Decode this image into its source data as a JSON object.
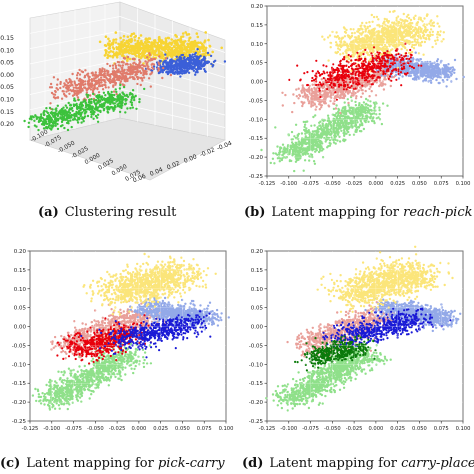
{
  "captions": {
    "a": {
      "tag": "(a)",
      "text": "Clustering result",
      "italic": ""
    },
    "b": {
      "tag": "(b)",
      "text": "Latent mapping for ",
      "italic": "reach-pick"
    },
    "c": {
      "tag": "(c)",
      "text": "Latent mapping for ",
      "italic": "pick-carry"
    },
    "d": {
      "tag": "(d)",
      "text": "Latent mapping for ",
      "italic": "carry-place"
    }
  },
  "colors": {
    "yellow": "#f7d433",
    "red_cluster": "#e07b6b",
    "blue_cluster": "#3b5fd8",
    "green_cluster": "#3cc23c",
    "light_yellow": "#fbe57a",
    "light_red": "#e9a09a",
    "light_blue": "#93a9e8",
    "light_green": "#8fe08a",
    "mapping_red": "#e8000b",
    "mapping_blue": "#1a1ad6",
    "mapping_green": "#0b7a0b"
  },
  "chart_data": [
    {
      "type": "scatter",
      "subtype": "3d",
      "title": "",
      "z_ticks": [
        "0.15",
        "0.10",
        "0.05",
        "0.00",
        "-0.05",
        "-0.10",
        "-0.15",
        "-0.20"
      ],
      "x_ticks": [
        "-0.100",
        "-0.075",
        "-0.050",
        "-0.025",
        "0.000",
        "0.025",
        "0.050",
        "0.075"
      ],
      "y_ticks": [
        "0.06",
        "0.04",
        "0.02",
        "0.00",
        "-0.02",
        "-0.04"
      ],
      "series": [
        {
          "color": "yellow",
          "note": "top cluster"
        },
        {
          "color": "blue",
          "note": "right cluster"
        },
        {
          "color": "red",
          "note": "middle cluster"
        },
        {
          "color": "green",
          "note": "bottom cluster"
        }
      ]
    },
    {
      "type": "scatter",
      "xlim": [
        -0.125,
        0.1
      ],
      "ylim": [
        -0.25,
        0.2
      ],
      "x_ticks": [
        "-0.125",
        "-0.100",
        "-0.075",
        "-0.050",
        "-0.025",
        "0.000",
        "0.025",
        "0.050",
        "0.075",
        "0.100"
      ],
      "y_ticks": [
        "0.20",
        "0.15",
        "0.10",
        "0.05",
        "0.00",
        "-0.05",
        "-0.10",
        "-0.15",
        "-0.20",
        "-0.25"
      ],
      "highlight": "red",
      "highlight_region": {
        "x": [
          -0.06,
          0.04
        ],
        "y": [
          -0.04,
          0.09
        ]
      }
    },
    {
      "type": "scatter",
      "xlim": [
        -0.125,
        0.1
      ],
      "ylim": [
        -0.25,
        0.2
      ],
      "x_ticks": [
        "-0.125",
        "-0.100",
        "-0.075",
        "-0.050",
        "-0.025",
        "0.000",
        "0.025",
        "0.050",
        "0.075",
        "0.100"
      ],
      "y_ticks": [
        "0.20",
        "0.15",
        "0.10",
        "0.05",
        "0.00",
        "-0.05",
        "-0.10",
        "-0.15",
        "-0.20",
        "-0.25"
      ],
      "highlight": "red+blue",
      "highlight_region": {
        "x": [
          -0.08,
          0.06
        ],
        "y": [
          -0.12,
          0.02
        ]
      }
    },
    {
      "type": "scatter",
      "xlim": [
        -0.125,
        0.1
      ],
      "ylim": [
        -0.25,
        0.2
      ],
      "x_ticks": [
        "-0.125",
        "-0.100",
        "-0.075",
        "-0.050",
        "-0.025",
        "0.000",
        "0.025",
        "0.050",
        "0.075",
        "0.100"
      ],
      "y_ticks": [
        "0.20",
        "0.15",
        "0.10",
        "0.05",
        "0.00",
        "-0.05",
        "-0.10",
        "-0.15",
        "-0.20",
        "-0.25"
      ],
      "highlight": "blue+green",
      "highlight_region": {
        "x": [
          -0.08,
          0.05
        ],
        "y": [
          -0.12,
          0.03
        ]
      }
    }
  ]
}
